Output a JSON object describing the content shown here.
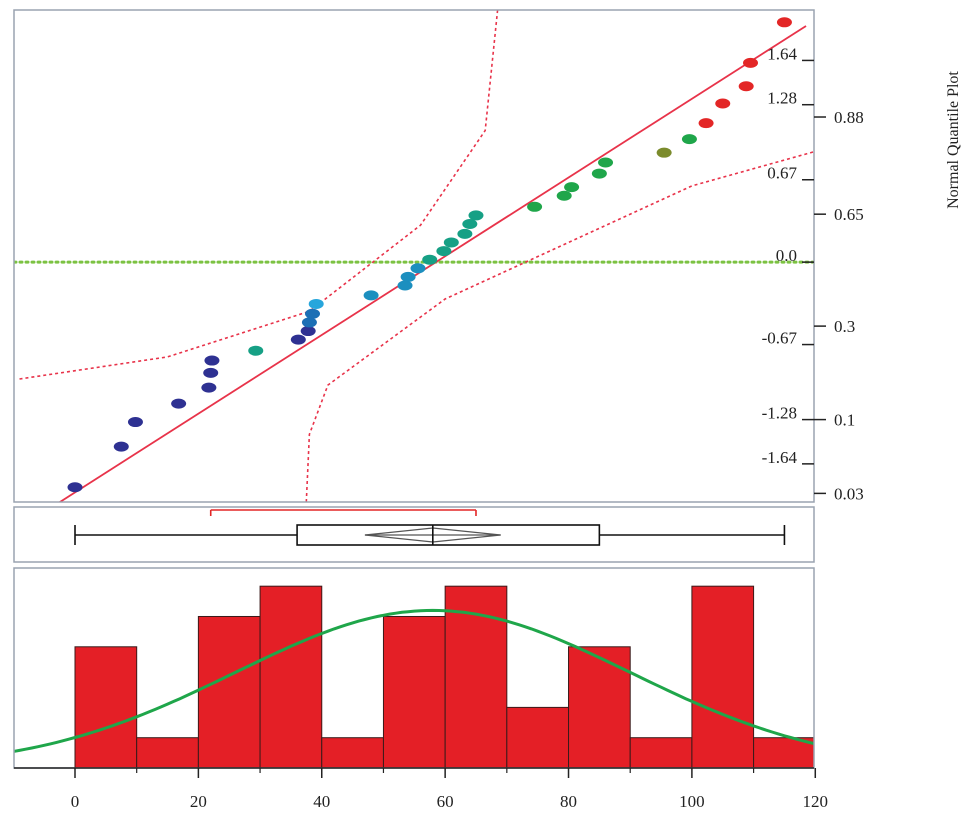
{
  "chart_data": {
    "type": "composite",
    "x_axis": {
      "min": 0,
      "max": 120,
      "ticks": [
        0,
        20,
        40,
        60,
        80,
        100,
        120
      ]
    },
    "quantile_plot": {
      "type": "scatter",
      "title_vertical": "Normal Quantile Plot",
      "y_range": [
        -1.95,
        2.05
      ],
      "z_ticks": [
        {
          "value": 1.64,
          "label": "1.64"
        },
        {
          "value": 1.28,
          "label": "1.28"
        },
        {
          "value": 0.67,
          "label": "0.67"
        },
        {
          "value": 0.0,
          "label": "0.0"
        },
        {
          "value": -0.67,
          "label": "-0.67"
        },
        {
          "value": -1.28,
          "label": "-1.28"
        },
        {
          "value": -1.64,
          "label": "-1.64"
        }
      ],
      "prob_ticks": [
        {
          "value": 1.18,
          "label": "0.88"
        },
        {
          "value": 0.39,
          "label": "0.65"
        },
        {
          "value": -0.52,
          "label": "0.3"
        },
        {
          "value": -1.28,
          "label": "0.1"
        },
        {
          "value": -1.88,
          "label": "0.03"
        }
      ],
      "zero_line": {
        "value": 0.0,
        "color": "#7cc242"
      },
      "fit_line": {
        "points": [
          [
            -4,
            -2.0
          ],
          [
            118.5,
            1.92
          ]
        ],
        "color": "#e8334a"
      },
      "confidence_bands": {
        "color": "#e8334a",
        "upper": [
          [
            -9,
            -0.95
          ],
          [
            15,
            -0.77
          ],
          [
            38,
            -0.4
          ],
          [
            56,
            0.3
          ],
          [
            66.5,
            1.07
          ],
          [
            68.5,
            2.05
          ]
        ],
        "lower": [
          [
            37.5,
            -1.95
          ],
          [
            38,
            -1.4
          ],
          [
            41,
            -1.0
          ],
          [
            60,
            -0.3
          ],
          [
            100,
            0.62
          ],
          [
            120,
            0.9
          ]
        ]
      },
      "points": [
        {
          "x": 0.0,
          "y": -1.83,
          "color": "#2e3192"
        },
        {
          "x": 7.5,
          "y": -1.5,
          "color": "#2e3192"
        },
        {
          "x": 9.8,
          "y": -1.3,
          "color": "#2e3192"
        },
        {
          "x": 16.8,
          "y": -1.15,
          "color": "#2e3192"
        },
        {
          "x": 21.7,
          "y": -1.02,
          "color": "#2e3192"
        },
        {
          "x": 22.0,
          "y": -0.9,
          "color": "#2e3192"
        },
        {
          "x": 22.2,
          "y": -0.8,
          "color": "#2e3192"
        },
        {
          "x": 29.3,
          "y": -0.72,
          "color": "#16a085"
        },
        {
          "x": 36.2,
          "y": -0.63,
          "color": "#2e3192"
        },
        {
          "x": 37.8,
          "y": -0.56,
          "color": "#2e3192"
        },
        {
          "x": 38.0,
          "y": -0.49,
          "color": "#1c6fb5"
        },
        {
          "x": 38.5,
          "y": -0.42,
          "color": "#1c6fb5"
        },
        {
          "x": 39.1,
          "y": -0.34,
          "color": "#27a6dc"
        },
        {
          "x": 48.0,
          "y": -0.27,
          "color": "#1c8fbf"
        },
        {
          "x": 53.5,
          "y": -0.19,
          "color": "#1c8fbf"
        },
        {
          "x": 54.0,
          "y": -0.12,
          "color": "#1c8fbf"
        },
        {
          "x": 55.6,
          "y": -0.05,
          "color": "#1c8fbf"
        },
        {
          "x": 57.5,
          "y": 0.02,
          "color": "#16a085"
        },
        {
          "x": 59.8,
          "y": 0.09,
          "color": "#16a085"
        },
        {
          "x": 61.0,
          "y": 0.16,
          "color": "#16a085"
        },
        {
          "x": 63.2,
          "y": 0.23,
          "color": "#16a085"
        },
        {
          "x": 64.0,
          "y": 0.31,
          "color": "#16a085"
        },
        {
          "x": 65.0,
          "y": 0.38,
          "color": "#16a085"
        },
        {
          "x": 74.5,
          "y": 0.45,
          "color": "#1fa64a"
        },
        {
          "x": 79.3,
          "y": 0.54,
          "color": "#1fa64a"
        },
        {
          "x": 80.5,
          "y": 0.61,
          "color": "#1fa64a"
        },
        {
          "x": 85.0,
          "y": 0.72,
          "color": "#1fa64a"
        },
        {
          "x": 86.0,
          "y": 0.81,
          "color": "#1fa64a"
        },
        {
          "x": 95.5,
          "y": 0.89,
          "color": "#7b8b2c"
        },
        {
          "x": 99.6,
          "y": 1.0,
          "color": "#1fa64a"
        },
        {
          "x": 102.3,
          "y": 1.13,
          "color": "#e32626"
        },
        {
          "x": 105.0,
          "y": 1.29,
          "color": "#e32626"
        },
        {
          "x": 108.8,
          "y": 1.43,
          "color": "#e32626"
        },
        {
          "x": 109.5,
          "y": 1.62,
          "color": "#e32626"
        },
        {
          "x": 115.0,
          "y": 1.95,
          "color": "#e32626"
        }
      ]
    },
    "box_plot": {
      "type": "box",
      "min": 0,
      "q1": 36,
      "median": 58,
      "q3": 85,
      "max": 115,
      "mean": 58,
      "mean_ci": [
        47,
        69
      ],
      "shortest_half": [
        22,
        65
      ],
      "bracket_color": "#e32626"
    },
    "histogram": {
      "type": "bar",
      "bar_color": "#e41f26",
      "curve_color": "#1fa64a",
      "bins": [
        {
          "start": 0,
          "end": 10,
          "count": 4
        },
        {
          "start": 10,
          "end": 20,
          "count": 1
        },
        {
          "start": 20,
          "end": 30,
          "count": 5
        },
        {
          "start": 30,
          "end": 40,
          "count": 6
        },
        {
          "start": 40,
          "end": 50,
          "count": 1
        },
        {
          "start": 50,
          "end": 60,
          "count": 5
        },
        {
          "start": 60,
          "end": 70,
          "count": 6
        },
        {
          "start": 70,
          "end": 80,
          "count": 2
        },
        {
          "start": 80,
          "end": 90,
          "count": 4
        },
        {
          "start": 90,
          "end": 100,
          "count": 1
        },
        {
          "start": 100,
          "end": 110,
          "count": 6
        },
        {
          "start": 110,
          "end": 120,
          "count": 1
        }
      ],
      "normal_fit": {
        "mean": 58,
        "sd": 32,
        "peak_count": 5.2
      },
      "count_max": 6.6
    }
  }
}
